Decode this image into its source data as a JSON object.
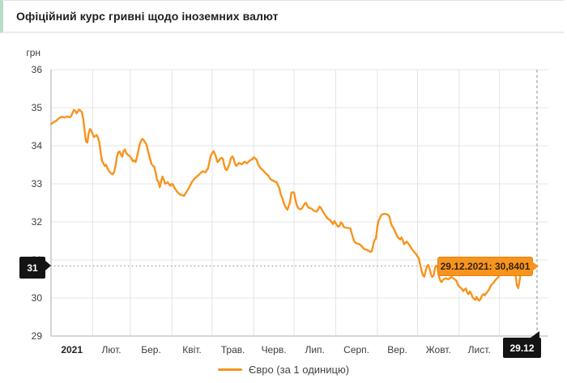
{
  "header": {
    "title": "Офіційний курс гривні щодо іноземних валют"
  },
  "colors": {
    "line_orange": "#f7941e",
    "tooltip_bg": "#f7941e",
    "tooltip_text": "#33240a",
    "badge_black": "#141414",
    "header_accent_green": "#b9dcc5",
    "grid": "#e4e4e4",
    "axis": "#bdbdbd",
    "guide": "#9e9e9e",
    "tick_text": "#3c3c3c"
  },
  "chart_data": {
    "type": "line",
    "title": "Офіційний курс гривні щодо іноземних валют",
    "xlabel": "",
    "ylabel": "грн",
    "ylim": [
      29,
      36
    ],
    "y_ticks": [
      36,
      35,
      34,
      33,
      32,
      31,
      30,
      29
    ],
    "x_tick_labels": [
      "2021",
      "Лют.",
      "Бер.",
      "Квіт.",
      "Трав.",
      "Черв.",
      "Лип.",
      "Серп.",
      "Вер.",
      "Жовт.",
      "Лист."
    ],
    "month_start_days": [
      1,
      32,
      60,
      91,
      121,
      152,
      182,
      213,
      244,
      274,
      305,
      335
    ],
    "x_unit": "day_of_year_2021",
    "grid": true,
    "legend_position": "bottom",
    "highlight": {
      "date": "29.12.2021",
      "value": 30.8401,
      "day": 363,
      "tooltip": "29.12.2021: 30,8401",
      "y_axis_badge": "31",
      "x_axis_badge": "29.12"
    },
    "series": [
      {
        "name": "Євро (за 1 одиницю)",
        "color": "#f7941e",
        "points": [
          [
            1,
            34.57
          ],
          [
            3,
            34.62
          ],
          [
            5,
            34.66
          ],
          [
            7,
            34.73
          ],
          [
            9,
            34.76
          ],
          [
            11,
            34.74
          ],
          [
            13,
            34.77
          ],
          [
            15,
            34.75
          ],
          [
            16,
            34.78
          ],
          [
            17,
            34.86
          ],
          [
            18,
            34.94
          ],
          [
            19,
            34.92
          ],
          [
            20,
            34.85
          ],
          [
            21,
            34.9
          ],
          [
            22,
            34.95
          ],
          [
            23,
            34.92
          ],
          [
            24,
            34.88
          ],
          [
            25,
            34.7
          ],
          [
            26,
            34.42
          ],
          [
            27,
            34.12
          ],
          [
            28,
            34.08
          ],
          [
            29,
            34.32
          ],
          [
            30,
            34.44
          ],
          [
            31,
            34.4
          ],
          [
            32,
            34.3
          ],
          [
            33,
            34.23
          ],
          [
            34,
            34.26
          ],
          [
            35,
            34.28
          ],
          [
            36,
            34.21
          ],
          [
            37,
            34.08
          ],
          [
            38,
            33.82
          ],
          [
            39,
            33.6
          ],
          [
            40,
            33.54
          ],
          [
            41,
            33.47
          ],
          [
            42,
            33.5
          ],
          [
            43,
            33.41
          ],
          [
            44,
            33.34
          ],
          [
            45,
            33.3
          ],
          [
            46,
            33.27
          ],
          [
            47,
            33.25
          ],
          [
            48,
            33.31
          ],
          [
            49,
            33.46
          ],
          [
            50,
            33.7
          ],
          [
            51,
            33.82
          ],
          [
            52,
            33.85
          ],
          [
            53,
            33.77
          ],
          [
            54,
            33.71
          ],
          [
            55,
            33.86
          ],
          [
            56,
            33.9
          ],
          [
            57,
            33.81
          ],
          [
            58,
            33.77
          ],
          [
            59,
            33.74
          ],
          [
            60,
            33.71
          ],
          [
            61,
            33.66
          ],
          [
            62,
            33.59
          ],
          [
            63,
            33.62
          ],
          [
            64,
            33.57
          ],
          [
            65,
            33.7
          ],
          [
            66,
            33.86
          ],
          [
            67,
            34.03
          ],
          [
            68,
            34.12
          ],
          [
            69,
            34.18
          ],
          [
            70,
            34.15
          ],
          [
            71,
            34.09
          ],
          [
            72,
            34.04
          ],
          [
            73,
            33.9
          ],
          [
            74,
            33.76
          ],
          [
            75,
            33.62
          ],
          [
            76,
            33.51
          ],
          [
            77,
            33.47
          ],
          [
            78,
            33.44
          ],
          [
            79,
            33.28
          ],
          [
            80,
            33.1
          ],
          [
            81,
            33.05
          ],
          [
            82,
            32.91
          ],
          [
            83,
            33.06
          ],
          [
            84,
            33.19
          ],
          [
            85,
            33.11
          ],
          [
            86,
            33.0
          ],
          [
            87,
            33.02
          ],
          [
            88,
            33.04
          ],
          [
            89,
            32.98
          ],
          [
            90,
            32.95
          ],
          [
            91,
            33.0
          ],
          [
            92,
            32.97
          ],
          [
            93,
            32.89
          ],
          [
            94,
            32.84
          ],
          [
            95,
            32.79
          ],
          [
            97,
            32.72
          ],
          [
            99,
            32.7
          ],
          [
            100,
            32.68
          ],
          [
            102,
            32.79
          ],
          [
            104,
            32.91
          ],
          [
            106,
            33.05
          ],
          [
            108,
            33.14
          ],
          [
            110,
            33.2
          ],
          [
            112,
            33.27
          ],
          [
            114,
            33.33
          ],
          [
            116,
            33.3
          ],
          [
            118,
            33.41
          ],
          [
            119,
            33.58
          ],
          [
            120,
            33.74
          ],
          [
            121,
            33.8
          ],
          [
            122,
            33.86
          ],
          [
            123,
            33.79
          ],
          [
            124,
            33.69
          ],
          [
            125,
            33.57
          ],
          [
            126,
            33.6
          ],
          [
            127,
            33.66
          ],
          [
            128,
            33.68
          ],
          [
            129,
            33.66
          ],
          [
            130,
            33.49
          ],
          [
            131,
            33.38
          ],
          [
            132,
            33.36
          ],
          [
            134,
            33.53
          ],
          [
            135,
            33.67
          ],
          [
            136,
            33.72
          ],
          [
            137,
            33.67
          ],
          [
            138,
            33.53
          ],
          [
            139,
            33.47
          ],
          [
            141,
            33.55
          ],
          [
            143,
            33.51
          ],
          [
            145,
            33.58
          ],
          [
            147,
            33.54
          ],
          [
            149,
            33.61
          ],
          [
            151,
            33.65
          ],
          [
            152,
            33.7
          ],
          [
            153,
            33.67
          ],
          [
            154,
            33.64
          ],
          [
            155,
            33.54
          ],
          [
            156,
            33.47
          ],
          [
            157,
            33.41
          ],
          [
            159,
            33.35
          ],
          [
            161,
            33.27
          ],
          [
            163,
            33.21
          ],
          [
            164,
            33.14
          ],
          [
            165,
            33.11
          ],
          [
            167,
            33.07
          ],
          [
            169,
            33.04
          ],
          [
            171,
            32.89
          ],
          [
            172,
            32.74
          ],
          [
            173,
            32.64
          ],
          [
            174,
            32.54
          ],
          [
            175,
            32.44
          ],
          [
            176,
            32.37
          ],
          [
            177,
            32.32
          ],
          [
            178,
            32.41
          ],
          [
            179,
            32.52
          ],
          [
            180,
            32.76
          ],
          [
            181,
            32.78
          ],
          [
            182,
            32.77
          ],
          [
            183,
            32.59
          ],
          [
            184,
            32.44
          ],
          [
            185,
            32.37
          ],
          [
            186,
            32.34
          ],
          [
            187,
            32.33
          ],
          [
            188,
            32.36
          ],
          [
            190,
            32.48
          ],
          [
            191,
            32.5
          ],
          [
            192,
            32.41
          ],
          [
            193,
            32.37
          ],
          [
            195,
            32.35
          ],
          [
            197,
            32.29
          ],
          [
            199,
            32.27
          ],
          [
            201,
            32.4
          ],
          [
            202,
            32.37
          ],
          [
            204,
            32.24
          ],
          [
            205,
            32.19
          ],
          [
            207,
            32.09
          ],
          [
            209,
            32.04
          ],
          [
            210,
            31.99
          ],
          [
            211,
            31.94
          ],
          [
            212,
            32.02
          ],
          [
            213,
            31.97
          ],
          [
            214,
            31.91
          ],
          [
            215,
            31.87
          ],
          [
            216,
            31.9
          ],
          [
            217,
            31.99
          ],
          [
            218,
            31.95
          ],
          [
            219,
            31.87
          ],
          [
            220,
            31.85
          ],
          [
            222,
            31.84
          ],
          [
            224,
            31.83
          ],
          [
            225,
            31.69
          ],
          [
            226,
            31.57
          ],
          [
            227,
            31.48
          ],
          [
            228,
            31.45
          ],
          [
            229,
            31.43
          ],
          [
            231,
            31.41
          ],
          [
            233,
            31.34
          ],
          [
            234,
            31.29
          ],
          [
            236,
            31.27
          ],
          [
            238,
            31.23
          ],
          [
            239,
            31.21
          ],
          [
            240,
            31.23
          ],
          [
            241,
            31.4
          ],
          [
            242,
            31.52
          ],
          [
            243,
            31.56
          ],
          [
            244,
            31.86
          ],
          [
            245,
            32.03
          ],
          [
            246,
            32.1
          ],
          [
            247,
            32.18
          ],
          [
            248,
            32.2
          ],
          [
            250,
            32.21
          ],
          [
            252,
            32.19
          ],
          [
            253,
            32.14
          ],
          [
            254,
            31.99
          ],
          [
            255,
            31.89
          ],
          [
            256,
            31.84
          ],
          [
            258,
            31.69
          ],
          [
            259,
            31.61
          ],
          [
            260,
            31.57
          ],
          [
            261,
            31.54
          ],
          [
            262,
            31.59
          ],
          [
            263,
            31.51
          ],
          [
            264,
            31.41
          ],
          [
            265,
            31.45
          ],
          [
            266,
            31.48
          ],
          [
            268,
            31.39
          ],
          [
            270,
            31.27
          ],
          [
            272,
            31.19
          ],
          [
            273,
            31.15
          ],
          [
            274,
            31.09
          ],
          [
            275,
            31.04
          ],
          [
            276,
            30.87
          ],
          [
            277,
            30.71
          ],
          [
            278,
            30.6
          ],
          [
            279,
            30.56
          ],
          [
            280,
            30.7
          ],
          [
            281,
            30.84
          ],
          [
            282,
            30.87
          ],
          [
            283,
            30.77
          ],
          [
            284,
            30.61
          ],
          [
            285,
            30.55
          ],
          [
            286,
            30.59
          ],
          [
            287,
            30.79
          ],
          [
            288,
            30.85
          ],
          [
            289,
            30.8
          ],
          [
            290,
            30.55
          ],
          [
            291,
            30.45
          ],
          [
            292,
            30.42
          ],
          [
            293,
            30.48
          ],
          [
            295,
            30.52
          ],
          [
            297,
            30.49
          ],
          [
            299,
            30.55
          ],
          [
            301,
            30.51
          ],
          [
            303,
            30.45
          ],
          [
            304,
            30.35
          ],
          [
            305,
            30.3
          ],
          [
            306,
            30.27
          ],
          [
            307,
            30.24
          ],
          [
            308,
            30.18
          ],
          [
            309,
            30.22
          ],
          [
            310,
            30.25
          ],
          [
            311,
            30.14
          ],
          [
            312,
            30.1
          ],
          [
            313,
            30.17
          ],
          [
            314,
            30.11
          ],
          [
            315,
            30.02
          ],
          [
            316,
            29.98
          ],
          [
            317,
            29.95
          ],
          [
            318,
            30.03
          ],
          [
            319,
            29.96
          ],
          [
            320,
            29.93
          ],
          [
            321,
            29.98
          ],
          [
            322,
            30.06
          ],
          [
            323,
            30.1
          ],
          [
            324,
            30.07
          ],
          [
            325,
            30.12
          ],
          [
            326,
            30.16
          ],
          [
            327,
            30.21
          ],
          [
            328,
            30.28
          ],
          [
            329,
            30.34
          ],
          [
            330,
            30.38
          ],
          [
            331,
            30.42
          ],
          [
            332,
            30.47
          ],
          [
            333,
            30.51
          ],
          [
            334,
            30.54
          ],
          [
            335,
            30.6
          ],
          [
            336,
            30.67
          ],
          [
            337,
            30.72
          ],
          [
            339,
            30.78
          ],
          [
            341,
            30.82
          ],
          [
            343,
            30.85
          ],
          [
            345,
            30.86
          ],
          [
            346,
            30.81
          ],
          [
            347,
            30.59
          ],
          [
            348,
            30.34
          ],
          [
            349,
            30.26
          ],
          [
            350,
            30.46
          ],
          [
            351,
            30.7
          ],
          [
            352,
            30.79
          ],
          [
            353,
            30.82
          ],
          [
            355,
            30.77
          ],
          [
            357,
            30.8
          ],
          [
            359,
            30.83
          ],
          [
            361,
            30.82
          ],
          [
            363,
            30.8401
          ]
        ]
      }
    ]
  }
}
